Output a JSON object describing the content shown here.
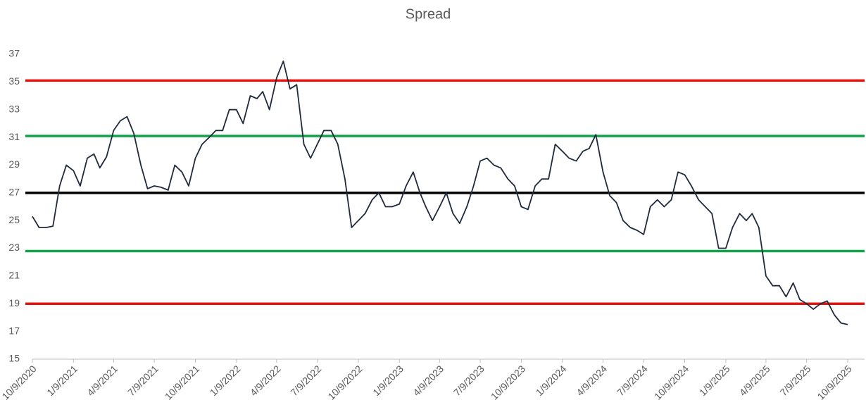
{
  "chart_data": {
    "type": "line",
    "title": "Spread",
    "color": "#1f2a3c",
    "x": [
      "10/9/2020",
      "10/24/2020",
      "11/9/2020",
      "11/24/2020",
      "12/9/2020",
      "12/24/2020",
      "1/9/2021",
      "1/24/2021",
      "2/9/2021",
      "2/24/2021",
      "3/9/2021",
      "3/24/2021",
      "4/9/2021",
      "4/24/2021",
      "5/9/2021",
      "5/24/2021",
      "6/9/2021",
      "6/24/2021",
      "7/9/2021",
      "7/24/2021",
      "8/9/2021",
      "8/24/2021",
      "9/9/2021",
      "9/24/2021",
      "10/9/2021",
      "10/24/2021",
      "11/9/2021",
      "11/24/2021",
      "12/9/2021",
      "12/24/2021",
      "1/9/2022",
      "1/24/2022",
      "2/9/2022",
      "2/24/2022",
      "3/9/2022",
      "3/24/2022",
      "4/9/2022",
      "4/24/2022",
      "5/9/2022",
      "5/24/2022",
      "6/9/2022",
      "6/24/2022",
      "7/9/2022",
      "7/24/2022",
      "8/9/2022",
      "8/24/2022",
      "9/9/2022",
      "9/24/2022",
      "10/9/2022",
      "10/24/2022",
      "11/9/2022",
      "11/24/2022",
      "12/9/2022",
      "12/24/2022",
      "1/9/2023",
      "1/24/2023",
      "2/9/2023",
      "2/24/2023",
      "3/9/2023",
      "3/24/2023",
      "4/9/2023",
      "4/24/2023",
      "5/9/2023",
      "5/24/2023",
      "6/9/2023",
      "6/24/2023",
      "7/9/2023",
      "7/24/2023",
      "8/9/2023",
      "8/24/2023",
      "9/9/2023",
      "9/24/2023",
      "10/9/2023",
      "10/24/2023",
      "11/9/2023",
      "11/24/2023",
      "12/9/2023",
      "12/24/2023",
      "1/9/2024",
      "1/24/2024",
      "2/9/2024",
      "2/24/2024",
      "3/9/2024",
      "3/24/2024",
      "4/9/2024",
      "4/24/2024",
      "5/9/2024",
      "5/24/2024",
      "6/9/2024",
      "6/24/2024",
      "7/9/2024",
      "7/24/2024",
      "8/9/2024",
      "8/24/2024",
      "9/9/2024",
      "9/24/2024",
      "10/9/2024",
      "10/24/2024",
      "11/9/2024",
      "11/24/2024",
      "12/9/2024",
      "12/24/2024",
      "1/9/2025",
      "1/24/2025",
      "2/9/2025",
      "2/24/2025",
      "3/9/2025",
      "3/24/2025",
      "4/9/2025",
      "4/24/2025",
      "5/9/2025",
      "5/24/2025",
      "6/9/2025",
      "6/24/2025",
      "7/9/2025",
      "7/24/2025",
      "8/9/2025",
      "8/24/2025",
      "9/9/2025",
      "9/24/2025",
      "10/9/2025"
    ],
    "values": [
      25.3,
      24.5,
      24.5,
      24.6,
      27.5,
      29.0,
      28.6,
      27.5,
      29.5,
      29.8,
      28.8,
      29.6,
      31.5,
      32.2,
      32.5,
      31.3,
      29.0,
      27.3,
      27.5,
      27.4,
      27.2,
      29.0,
      28.5,
      27.5,
      29.5,
      30.5,
      31.0,
      31.5,
      31.5,
      33.0,
      33.0,
      32.0,
      34.0,
      33.8,
      34.3,
      33.0,
      35.3,
      36.5,
      34.5,
      34.8,
      30.5,
      29.5,
      30.5,
      31.5,
      31.5,
      30.5,
      28.0,
      24.5,
      25.0,
      25.5,
      26.5,
      27.0,
      26.0,
      26.0,
      26.2,
      27.5,
      28.5,
      27.0,
      26.0,
      25.0,
      26.0,
      27.0,
      25.5,
      24.8,
      26.0,
      27.5,
      29.3,
      29.5,
      29.0,
      28.8,
      28.0,
      27.5,
      26.0,
      25.8,
      27.5,
      28.0,
      28.0,
      30.5,
      30.0,
      29.5,
      29.3,
      30.0,
      30.2,
      31.2,
      28.5,
      26.8,
      26.3,
      25.0,
      24.5,
      24.3,
      24.0,
      26.0,
      26.5,
      26.0,
      26.5,
      28.5,
      28.3,
      27.5,
      26.5,
      26.0,
      25.5,
      23.0,
      23.0,
      24.5,
      25.5,
      25.0,
      25.5,
      24.5,
      21.0,
      20.3,
      20.3,
      19.5,
      20.5,
      19.3,
      19.0,
      18.6,
      19.0,
      19.2,
      18.2,
      17.6,
      17.5
    ],
    "xlim": [
      "10/9/2020",
      "10/9/2025"
    ],
    "xticks": [
      "10/9/2020",
      "1/9/2021",
      "4/9/2021",
      "7/9/2021",
      "10/9/2021",
      "1/9/2022",
      "4/9/2022",
      "7/9/2022",
      "10/9/2022",
      "1/9/2023",
      "4/9/2023",
      "7/9/2023",
      "10/9/2023",
      "1/9/2024",
      "4/9/2024",
      "7/9/2024",
      "10/9/2024",
      "1/9/2025",
      "4/9/2025",
      "7/9/2025",
      "10/9/2025"
    ],
    "ylim": [
      15,
      37
    ],
    "yticks": [
      15,
      17,
      19,
      21,
      23,
      25,
      27,
      29,
      31,
      33,
      35,
      37
    ],
    "reference_lines": [
      {
        "value": 35.1,
        "color": "#e8120c"
      },
      {
        "value": 31.1,
        "color": "#14a34a"
      },
      {
        "value": 27.0,
        "color": "#000000"
      },
      {
        "value": 22.8,
        "color": "#14a34a"
      },
      {
        "value": 19.0,
        "color": "#e8120c"
      }
    ]
  }
}
